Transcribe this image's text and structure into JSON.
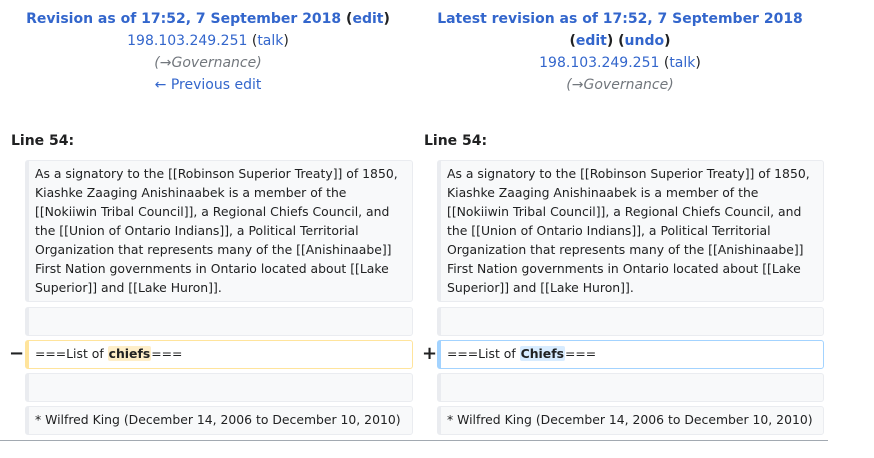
{
  "left_header": {
    "title_prefix": "Revision as of 17:52, 7 September 2018",
    "edit_label": "edit",
    "user": "198.103.249.251",
    "talk_label": "talk",
    "summary_arrow": "→",
    "summary_section": "Governance",
    "prev_edit": "← Previous edit"
  },
  "right_header": {
    "title_prefix": "Latest revision as of 17:52, 7 September 2018",
    "edit_label": "edit",
    "undo_label": "undo",
    "user": "198.103.249.251",
    "talk_label": "talk",
    "summary_arrow": "→",
    "summary_section": "Governance"
  },
  "diff": {
    "left_line": "Line 54:",
    "right_line": "Line 54:",
    "context_paragraph": "As a signatory to the [[Robinson Superior Treaty]] of 1850, Kiashke Zaaging Anishinaabek is a member of the [[Nokiiwin Tribal Council]], a Regional Chiefs Council, and the [[Union of Ontario Indians]], a Political Territorial Organization that represents many of the [[Anishinaabe]] First Nation governments in Ontario located about [[Lake Superior]] and [[Lake Huron]].",
    "minus_marker": "−",
    "plus_marker": "+",
    "removed_pre": "===List of ",
    "removed_word": "chiefs",
    "removed_post": "===",
    "added_pre": "===List of ",
    "added_word": "Chiefs",
    "added_post": "===",
    "last_context": "* Wilfred King (December 14, 2006 to December 10, 2010)"
  }
}
